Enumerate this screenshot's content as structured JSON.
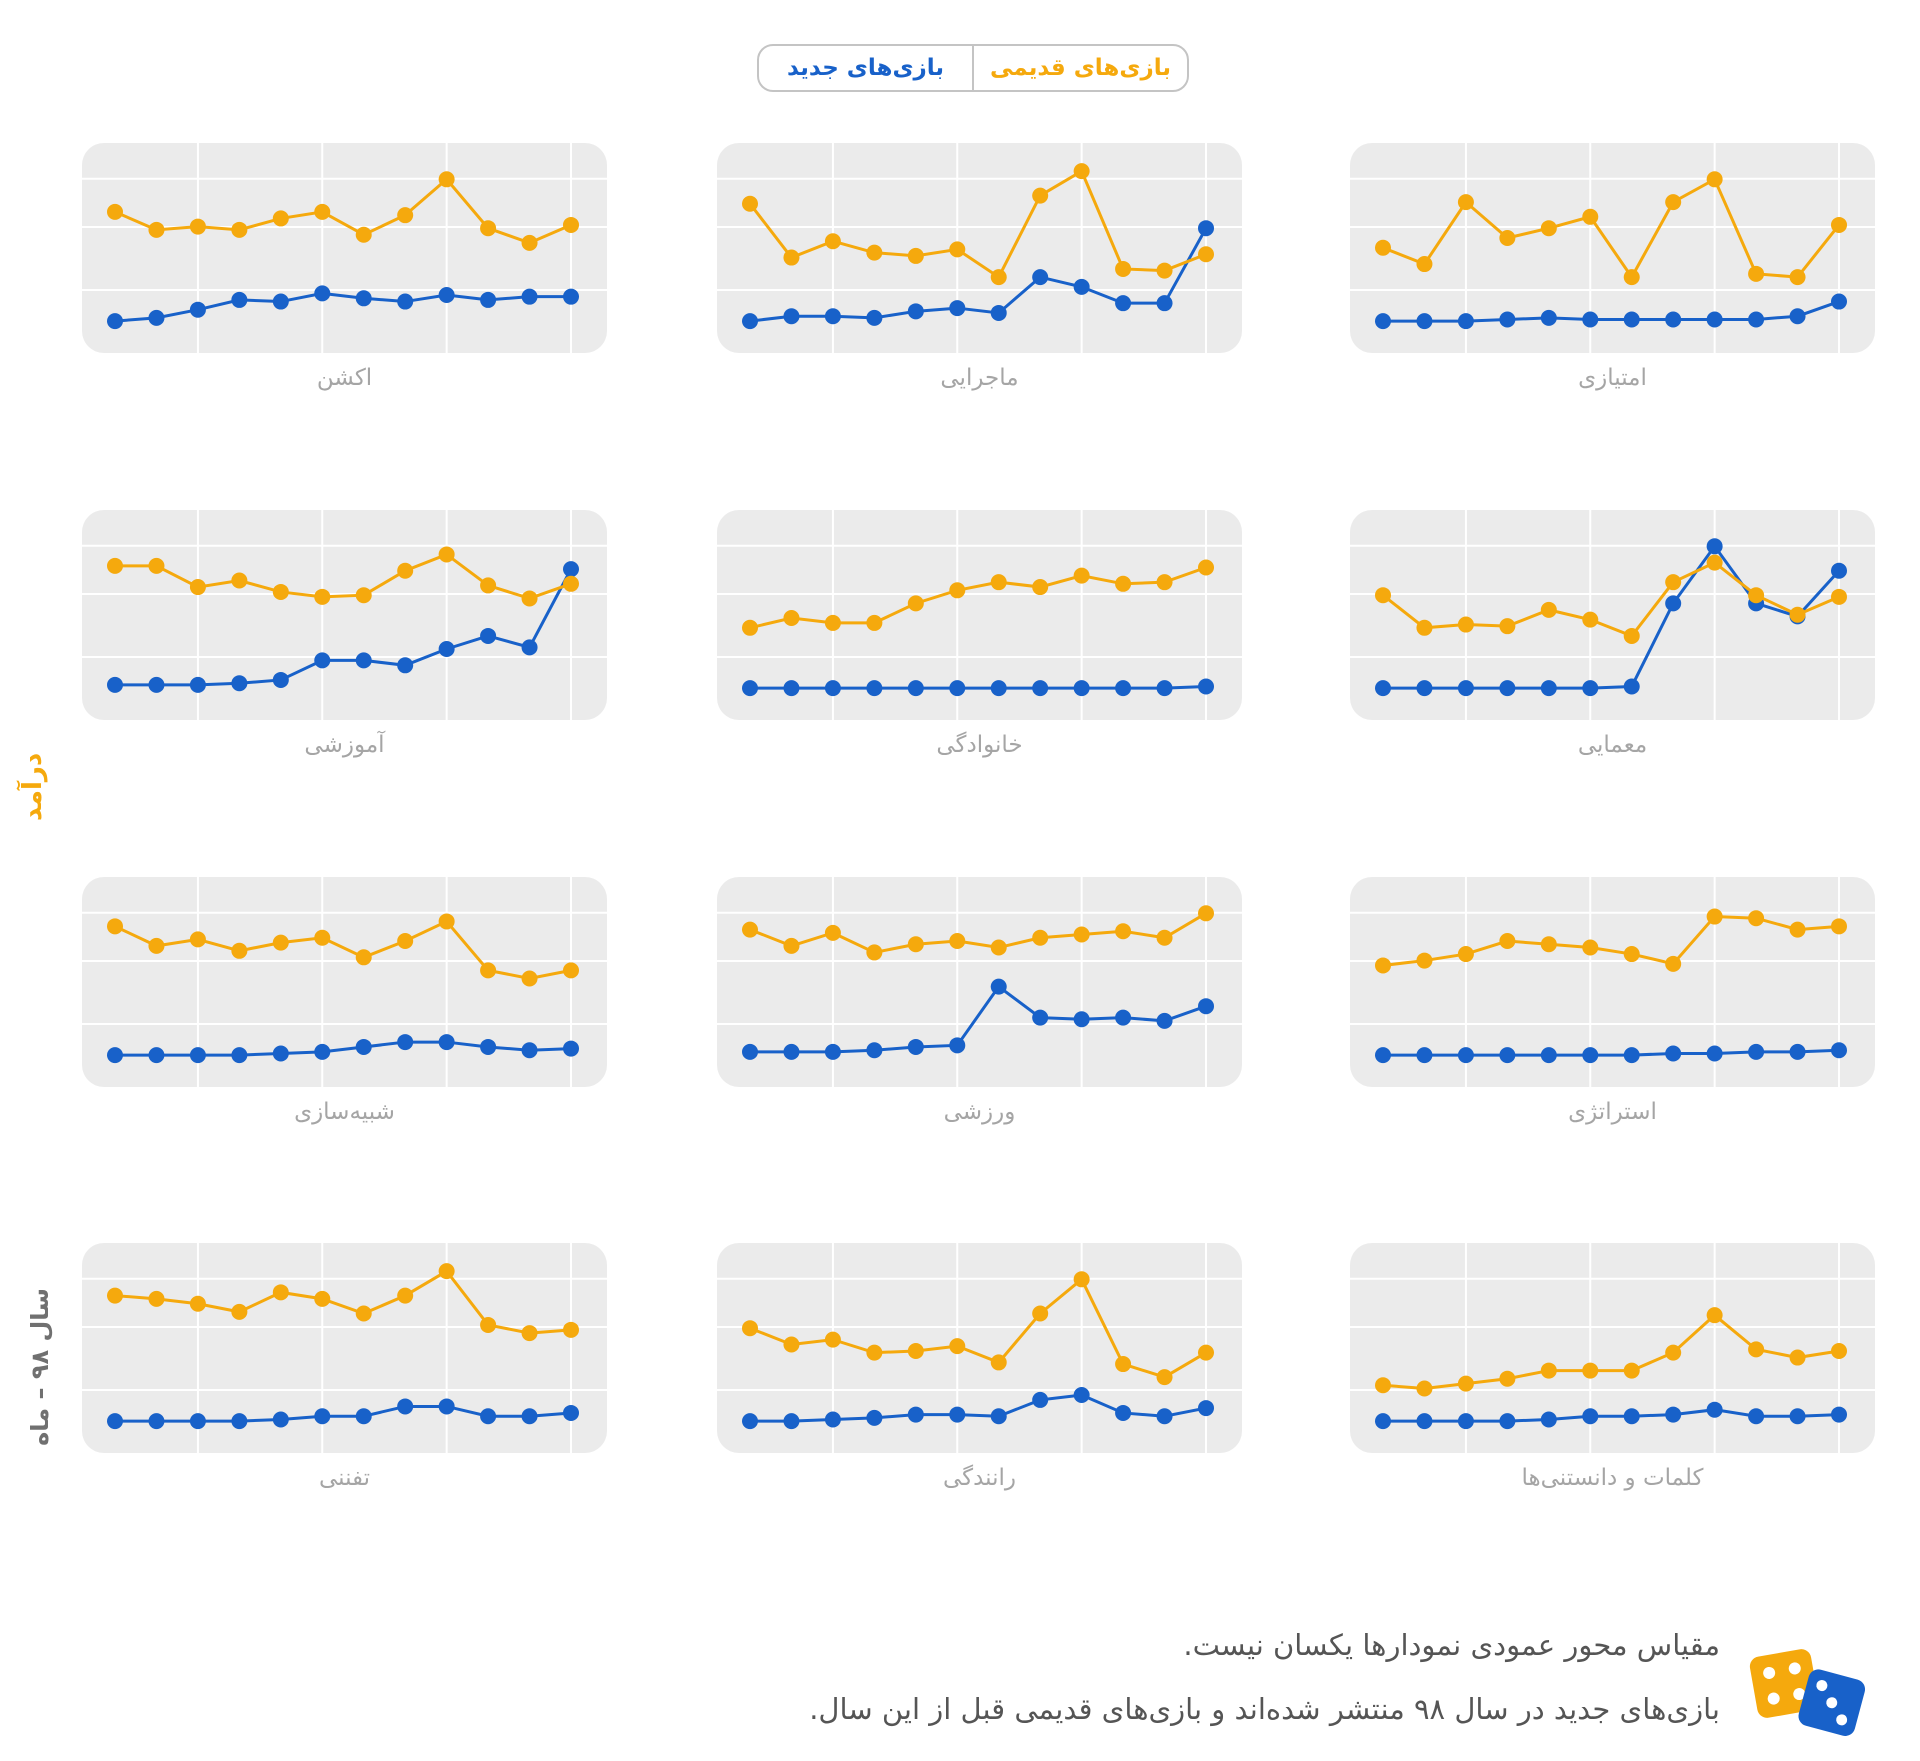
{
  "legend": {
    "old_label": "بازی‌های قدیمی",
    "new_label": "بازی‌های جدید"
  },
  "y_axis_label": "درآمد",
  "x_axis_label": "سال ۹۸ – ماه",
  "notes": {
    "line1": "مقیاس محور عمودی نمودارها یکسان نیست.",
    "line2": "بازی‌های جدید در سال ۹۸ منتشر شده‌اند و بازی‌های قدیمی قبل از این سال."
  },
  "colors": {
    "old": "#f5a90d",
    "new": "#1861c9",
    "panel_bg": "#ebebeb",
    "grid": "#ffffff",
    "label": "#a5a5a5"
  },
  "chart_data": [
    {
      "type": "line",
      "title": "امتیازی",
      "x": [
        1,
        2,
        3,
        4,
        5,
        6,
        7,
        8,
        9,
        10,
        11,
        12
      ],
      "series": [
        {
          "name": "بازی‌های قدیمی",
          "values": [
            48,
            38,
            76,
            54,
            60,
            67,
            30,
            76,
            90,
            32,
            30,
            62
          ]
        },
        {
          "name": "بازی‌های جدید",
          "values": [
            3,
            3,
            3,
            4,
            5,
            4,
            4,
            4,
            4,
            4,
            6,
            15
          ]
        }
      ]
    },
    {
      "type": "line",
      "title": "ماجرایی",
      "x": [
        1,
        2,
        3,
        4,
        5,
        6,
        7,
        8,
        9,
        10,
        11,
        12
      ],
      "series": [
        {
          "name": "بازی‌های قدیمی",
          "values": [
            75,
            42,
            52,
            45,
            43,
            47,
            30,
            80,
            95,
            35,
            34,
            44
          ]
        },
        {
          "name": "بازی‌های جدید",
          "values": [
            3,
            6,
            6,
            5,
            9,
            11,
            8,
            30,
            24,
            14,
            14,
            60
          ]
        }
      ]
    },
    {
      "type": "line",
      "title": "اکشن",
      "x": [
        1,
        2,
        3,
        4,
        5,
        6,
        7,
        8,
        9,
        10,
        11,
        12
      ],
      "series": [
        {
          "name": "بازی‌های قدیمی",
          "values": [
            70,
            59,
            61,
            59,
            66,
            70,
            56,
            68,
            90,
            60,
            51,
            62
          ]
        },
        {
          "name": "بازی‌های جدید",
          "values": [
            3,
            5,
            10,
            16,
            15,
            20,
            17,
            15,
            19,
            16,
            18,
            18
          ]
        }
      ]
    },
    {
      "type": "line",
      "title": "معمایی",
      "x": [
        1,
        2,
        3,
        4,
        5,
        6,
        7,
        8,
        9,
        10,
        11,
        12
      ],
      "series": [
        {
          "name": "بازی‌های قدیمی",
          "values": [
            60,
            40,
            42,
            41,
            51,
            45,
            35,
            68,
            80,
            60,
            48,
            59
          ]
        },
        {
          "name": "بازی‌های جدید",
          "values": [
            3,
            3,
            3,
            3,
            3,
            3,
            4,
            55,
            90,
            55,
            47,
            75
          ]
        }
      ]
    },
    {
      "type": "line",
      "title": "خانوادگی",
      "x": [
        1,
        2,
        3,
        4,
        5,
        6,
        7,
        8,
        9,
        10,
        11,
        12
      ],
      "series": [
        {
          "name": "بازی‌های قدیمی",
          "values": [
            40,
            46,
            43,
            43,
            55,
            63,
            68,
            65,
            72,
            67,
            68,
            77
          ]
        },
        {
          "name": "بازی‌های جدید",
          "values": [
            3,
            3,
            3,
            3,
            3,
            3,
            3,
            3,
            3,
            3,
            3,
            4
          ]
        }
      ]
    },
    {
      "type": "line",
      "title": "آموزشی",
      "x": [
        1,
        2,
        3,
        4,
        5,
        6,
        7,
        8,
        9,
        10,
        11,
        12
      ],
      "series": [
        {
          "name": "بازی‌های قدیمی",
          "values": [
            78,
            78,
            65,
            69,
            62,
            59,
            60,
            75,
            85,
            66,
            58,
            67
          ]
        },
        {
          "name": "بازی‌های جدید",
          "values": [
            5,
            5,
            5,
            6,
            8,
            20,
            20,
            17,
            27,
            35,
            28,
            76
          ]
        }
      ]
    },
    {
      "type": "line",
      "title": "استراتژی",
      "x": [
        1,
        2,
        3,
        4,
        5,
        6,
        7,
        8,
        9,
        10,
        11,
        12
      ],
      "series": [
        {
          "name": "بازی‌های قدیمی",
          "values": [
            58,
            61,
            65,
            73,
            71,
            69,
            65,
            59,
            88,
            87,
            80,
            82
          ]
        },
        {
          "name": "بازی‌های جدید",
          "values": [
            3,
            3,
            3,
            3,
            3,
            3,
            3,
            4,
            4,
            5,
            5,
            6
          ]
        }
      ]
    },
    {
      "type": "line",
      "title": "ورزشی",
      "x": [
        1,
        2,
        3,
        4,
        5,
        6,
        7,
        8,
        9,
        10,
        11,
        12
      ],
      "series": [
        {
          "name": "بازی‌های قدیمی",
          "values": [
            80,
            70,
            78,
            66,
            71,
            73,
            69,
            75,
            77,
            79,
            75,
            90
          ]
        },
        {
          "name": "بازی‌های جدید",
          "values": [
            5,
            5,
            5,
            6,
            8,
            9,
            45,
            26,
            25,
            26,
            24,
            33
          ]
        }
      ]
    },
    {
      "type": "line",
      "title": "شبیه‌سازی",
      "x": [
        1,
        2,
        3,
        4,
        5,
        6,
        7,
        8,
        9,
        10,
        11,
        12
      ],
      "series": [
        {
          "name": "بازی‌های قدیمی",
          "values": [
            82,
            70,
            74,
            67,
            72,
            75,
            63,
            73,
            85,
            55,
            50,
            55
          ]
        },
        {
          "name": "بازی‌های جدید",
          "values": [
            3,
            3,
            3,
            3,
            4,
            5,
            8,
            11,
            11,
            8,
            6,
            7
          ]
        }
      ]
    },
    {
      "type": "line",
      "title": "کلمات و دانستنی‌ها",
      "x": [
        1,
        2,
        3,
        4,
        5,
        6,
        7,
        8,
        9,
        10,
        11,
        12
      ],
      "series": [
        {
          "name": "بازی‌های قدیمی",
          "values": [
            25,
            23,
            26,
            29,
            34,
            34,
            34,
            45,
            68,
            47,
            42,
            46
          ]
        },
        {
          "name": "بازی‌های جدید",
          "values": [
            3,
            3,
            3,
            3,
            4,
            6,
            6,
            7,
            10,
            6,
            6,
            7
          ]
        }
      ]
    },
    {
      "type": "line",
      "title": "رانندگی",
      "x": [
        1,
        2,
        3,
        4,
        5,
        6,
        7,
        8,
        9,
        10,
        11,
        12
      ],
      "series": [
        {
          "name": "بازی‌های قدیمی",
          "values": [
            60,
            50,
            53,
            45,
            46,
            49,
            39,
            69,
            90,
            38,
            30,
            45
          ]
        },
        {
          "name": "بازی‌های جدید",
          "values": [
            3,
            3,
            4,
            5,
            7,
            7,
            6,
            16,
            19,
            8,
            6,
            11
          ]
        }
      ]
    },
    {
      "type": "line",
      "title": "تفننی",
      "x": [
        1,
        2,
        3,
        4,
        5,
        6,
        7,
        8,
        9,
        10,
        11,
        12
      ],
      "series": [
        {
          "name": "بازی‌های قدیمی",
          "values": [
            80,
            78,
            75,
            70,
            82,
            78,
            69,
            80,
            95,
            62,
            57,
            59
          ]
        },
        {
          "name": "بازی‌های جدید",
          "values": [
            3,
            3,
            3,
            3,
            4,
            6,
            6,
            12,
            12,
            6,
            6,
            8
          ]
        }
      ]
    }
  ]
}
